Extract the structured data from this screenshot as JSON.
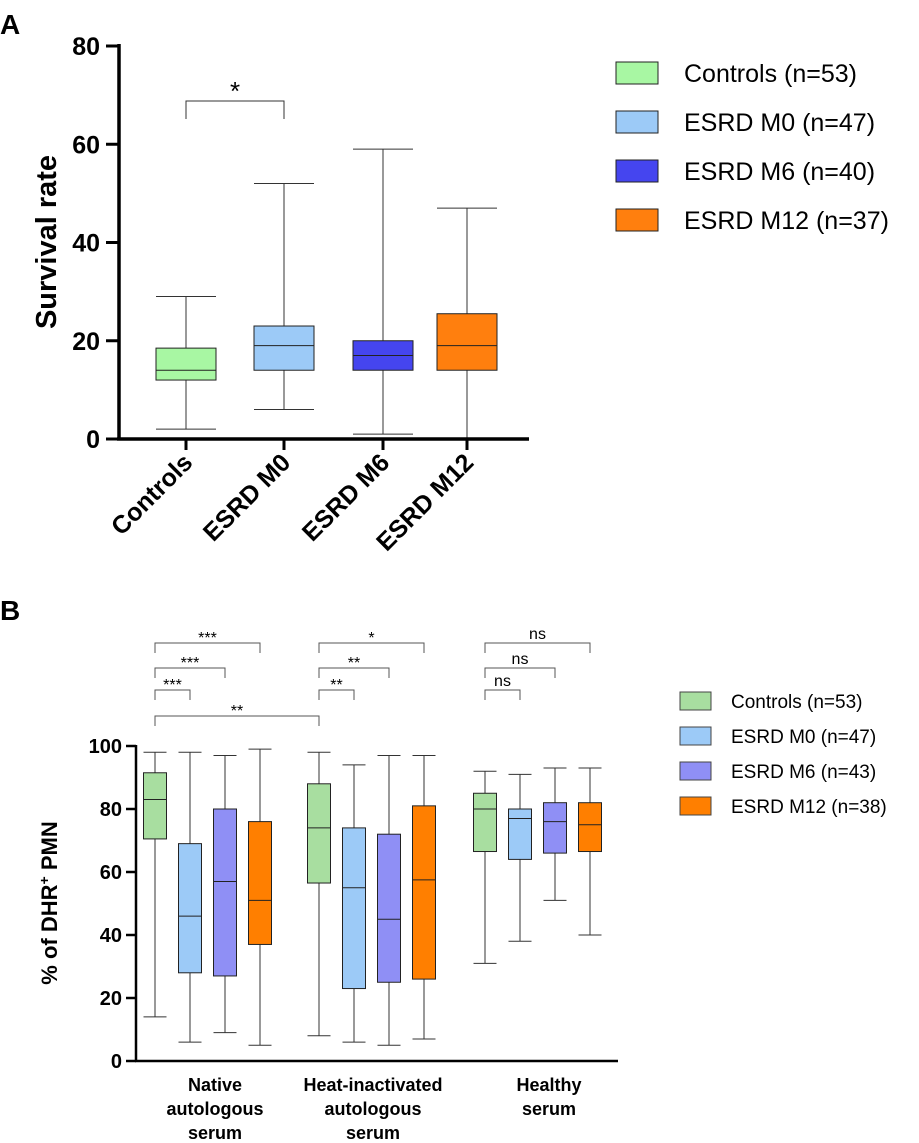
{
  "chart_data": [
    {
      "panel_label": "A",
      "type": "box",
      "ylabel": "Survival rate",
      "ylim": [
        0,
        80
      ],
      "yticks": [
        "0",
        "20",
        "40",
        "60",
        "80"
      ],
      "categories": [
        "Controls",
        "ESRD M0",
        "ESRD M6",
        "ESRD M12"
      ],
      "legend": [
        {
          "label": "Controls (n=53)",
          "color": "#a8f7a3"
        },
        {
          "label": "ESRD M0 (n=47)",
          "color": "#9ccaf7"
        },
        {
          "label": "ESRD M6 (n=40)",
          "color": "#4545ef"
        },
        {
          "label": "ESRD M12 (n=37)",
          "color": "#ff7f0e"
        }
      ],
      "boxes": [
        {
          "min": 2,
          "q1": 12,
          "median": 14,
          "q3": 18.5,
          "max": 29
        },
        {
          "min": 6,
          "q1": 14,
          "median": 19,
          "q3": 23,
          "max": 52
        },
        {
          "min": 1,
          "q1": 14,
          "median": 17,
          "q3": 20,
          "max": 59
        },
        {
          "min": 0,
          "q1": 14,
          "median": 19,
          "q3": 25.5,
          "max": 47
        }
      ],
      "significance": [
        {
          "from": 0,
          "to": 1,
          "label": "*"
        }
      ]
    },
    {
      "panel_label": "B",
      "type": "box",
      "ylabel_main": "% of DHR",
      "ylabel_sup": "+",
      "ylabel_tail": " PMN",
      "ylim": [
        0,
        100
      ],
      "yticks": [
        "0",
        "20",
        "40",
        "60",
        "80",
        "100"
      ],
      "groups": [
        {
          "lines": [
            "Native",
            "autologous",
            "serum"
          ]
        },
        {
          "lines": [
            "Heat-inactivated",
            "autologous",
            "serum"
          ]
        },
        {
          "lines": [
            "Healthy",
            "serum"
          ]
        }
      ],
      "legend": [
        {
          "label": "Controls (n=53)",
          "color": "#a8dea0"
        },
        {
          "label": "ESRD M0 (n=47)",
          "color": "#9ccaf7"
        },
        {
          "label": "ESRD M6 (n=43)",
          "color": "#8f8ff5"
        },
        {
          "label": "ESRD M12 (n=38)",
          "color": "#ff7f00"
        }
      ],
      "boxes": [
        [
          {
            "min": 14,
            "q1": 70.5,
            "median": 83,
            "q3": 91.5,
            "max": 98
          },
          {
            "min": 6,
            "q1": 28,
            "median": 46,
            "q3": 69,
            "max": 98
          },
          {
            "min": 9,
            "q1": 27,
            "median": 57,
            "q3": 80,
            "max": 97
          },
          {
            "min": 5,
            "q1": 37,
            "median": 51,
            "q3": 76,
            "max": 99
          }
        ],
        [
          {
            "min": 8,
            "q1": 56.5,
            "median": 74,
            "q3": 88,
            "max": 98
          },
          {
            "min": 6,
            "q1": 23,
            "median": 55,
            "q3": 74,
            "max": 94
          },
          {
            "min": 5,
            "q1": 25,
            "median": 45,
            "q3": 72,
            "max": 97
          },
          {
            "min": 7,
            "q1": 26,
            "median": 57.5,
            "q3": 81,
            "max": 97
          }
        ],
        [
          {
            "min": 31,
            "q1": 66.5,
            "median": 80,
            "q3": 85,
            "max": 92
          },
          {
            "min": 38,
            "q1": 64,
            "median": 77,
            "q3": 80,
            "max": 91
          },
          {
            "min": 51,
            "q1": 66,
            "median": 76,
            "q3": 82,
            "max": 93
          },
          {
            "min": 40,
            "q1": 66.5,
            "median": 75,
            "q3": 82,
            "max": 93
          }
        ]
      ],
      "significance": [
        {
          "group": 0,
          "from": 0,
          "to": 3,
          "label": "***"
        },
        {
          "group": 0,
          "from": 0,
          "to": 2,
          "label": "***"
        },
        {
          "group": 0,
          "from": 0,
          "to": 1,
          "label": "***"
        },
        {
          "group": 1,
          "from": 0,
          "to": 3,
          "label": "*"
        },
        {
          "group": 1,
          "from": 0,
          "to": 2,
          "label": "**"
        },
        {
          "group": 1,
          "from": 0,
          "to": 1,
          "label": "**"
        },
        {
          "group": 2,
          "from": 0,
          "to": 3,
          "label": "ns"
        },
        {
          "group": 2,
          "from": 0,
          "to": 2,
          "label": "ns"
        },
        {
          "group": 2,
          "from": 0,
          "to": 1,
          "label": "ns"
        },
        {
          "group_from": 0,
          "group_to": 1,
          "label": "**"
        }
      ]
    }
  ]
}
